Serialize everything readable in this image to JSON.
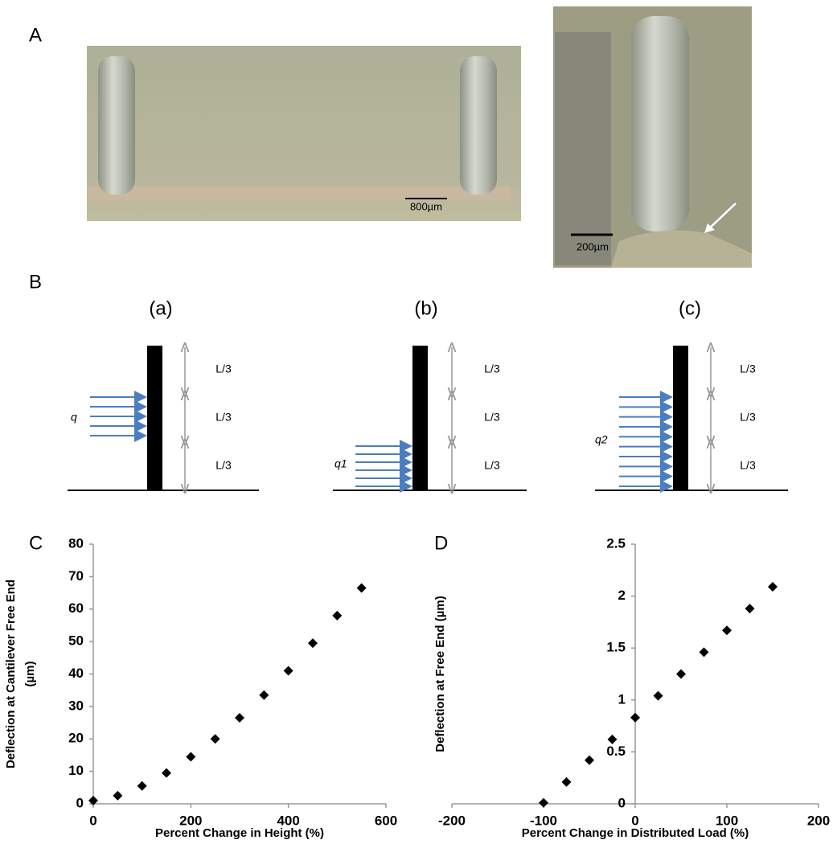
{
  "panel_a": {
    "label": "A",
    "scale_left": "800µm",
    "scale_right": "200µm"
  },
  "panel_b": {
    "label": "B",
    "diagrams": [
      {
        "title": "(a)",
        "load": "q",
        "segments": [
          "L/3",
          "L/3",
          "L/3"
        ]
      },
      {
        "title": "(b)",
        "load": "q1",
        "segments": [
          "L/3",
          "L/3",
          "L/3"
        ]
      },
      {
        "title": "(c)",
        "load": "q2",
        "segments": [
          "L/3",
          "L/3",
          "L/3"
        ]
      }
    ]
  },
  "chart_data": [
    {
      "type": "scatter",
      "label": "C",
      "xlabel": "Percent Change in Height (%)",
      "ylabel": [
        "Deflection at Cantilever Free End",
        "(µm)"
      ],
      "x": [
        0,
        50,
        100,
        150,
        200,
        250,
        300,
        350,
        400,
        450,
        500,
        550
      ],
      "values": [
        1,
        2.5,
        5.5,
        9.5,
        14.5,
        20,
        26.5,
        33.5,
        41,
        49.5,
        58,
        66.5
      ],
      "color": "#000000",
      "xlim": [
        0,
        600
      ],
      "xticks": [
        0,
        200,
        400,
        600
      ],
      "ylim": [
        0,
        80
      ],
      "yticks": [
        0,
        10,
        20,
        30,
        40,
        50,
        60,
        70,
        80
      ]
    },
    {
      "type": "scatter",
      "label": "D",
      "xlabel": "Percent Change in Distributed Load (%)",
      "ylabel": [
        "Deflection at Free End (µm)"
      ],
      "x": [
        -100,
        -75,
        -50,
        -25,
        0,
        25,
        50,
        75,
        100,
        125,
        150
      ],
      "values": [
        0.01,
        0.21,
        0.42,
        0.62,
        0.83,
        1.04,
        1.25,
        1.46,
        1.67,
        1.88,
        2.09
      ],
      "color": "#000000",
      "xlim": [
        -200,
        200
      ],
      "xticks": [
        -200,
        -100,
        0,
        100,
        200
      ],
      "ylim": [
        0,
        2.5
      ],
      "yticks": [
        0,
        0.5,
        1,
        1.5,
        2,
        2.5
      ]
    }
  ]
}
